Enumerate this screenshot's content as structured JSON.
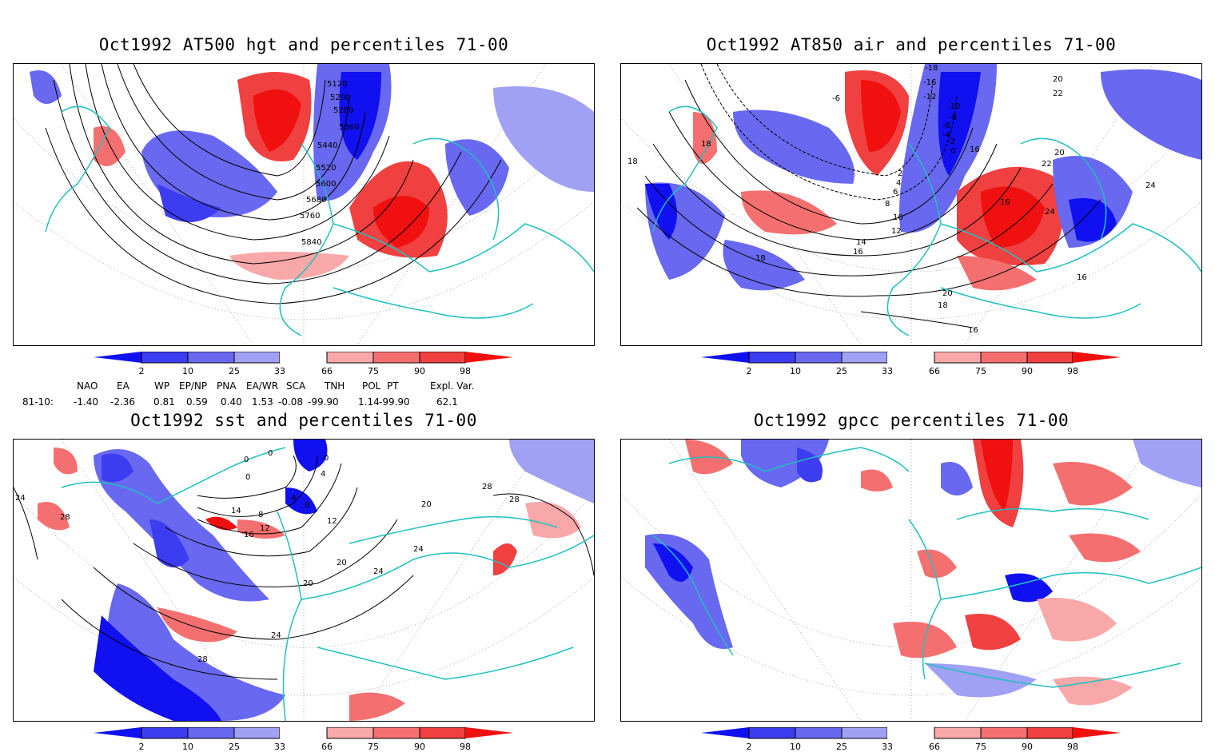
{
  "panels": [
    {
      "title": "Oct1992 AT500 hgt and percentiles 71-00",
      "contour_labels": [
        "5120",
        "5200",
        "5280",
        "5360",
        "5440",
        "5520",
        "5600",
        "5680",
        "5760",
        "5840"
      ]
    },
    {
      "title": "Oct1992 AT850 air and percentiles 71-00",
      "contour_labels": [
        "-6",
        "-18",
        "-16",
        "-12",
        "-10",
        "-8",
        "-6",
        "-4",
        "-2",
        "0",
        "2",
        "4",
        "6",
        "8",
        "10",
        "12",
        "14",
        "16",
        "18",
        "20",
        "22",
        "24",
        "16",
        "18",
        "20",
        "22",
        "24",
        "16",
        "18",
        "16",
        "18",
        "20",
        "16"
      ]
    },
    {
      "title": "Oct1992 sst and percentiles 71-00",
      "contour_labels": [
        "0",
        "0",
        "0",
        "0",
        "4",
        "4",
        "8",
        "8",
        "12",
        "12",
        "14",
        "16",
        "20",
        "20",
        "24",
        "24",
        "28",
        "28",
        "28",
        "28",
        "24",
        "20",
        "24"
      ]
    },
    {
      "title": "Oct1992 gpcc percentiles 71-00",
      "contour_labels": []
    }
  ],
  "colorbar": {
    "labels": [
      "2",
      "10",
      "25",
      "33",
      "66",
      "75",
      "90",
      "98"
    ],
    "colors": {
      "c1": "#1010f0",
      "c2": "#3c3cf0",
      "c3": "#6868f0",
      "c4": "#a0a0f4",
      "c5": "#f8a8a8",
      "c6": "#f47070",
      "c7": "#f04040",
      "c8": "#f01010"
    }
  },
  "indices": {
    "headers": [
      "NAO",
      "EA",
      "WP",
      "EP/NP",
      "PNA",
      "EA/WR",
      "SCA",
      "TNH",
      "POL",
      "PT",
      "Expl. Var."
    ],
    "row_label": "81-10:",
    "values": [
      "-1.40",
      "-2.36",
      "0.81",
      "0.59",
      "0.40",
      "1.53",
      "-0.08",
      "-99.90",
      "1.14",
      "-99.90",
      "62.1"
    ]
  },
  "colors": {
    "coast": "#20c0c0",
    "contour": "#000000",
    "grid": "#aaaaaa",
    "blue_deep": "#1010f0",
    "blue_mid": "#6868f0",
    "blue_light": "#a0a0f4",
    "red_light": "#f8a8a8",
    "red_mid": "#f04040",
    "red_deep": "#f01010"
  }
}
